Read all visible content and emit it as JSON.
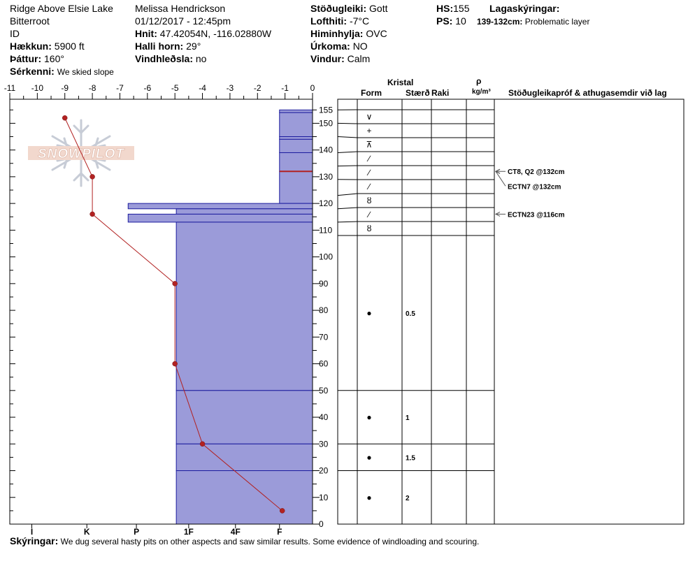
{
  "header": {
    "location": "Ridge Above Elsie Lake",
    "range": "Bitterroot",
    "state": "ID",
    "elevation_label": "Hækkun:",
    "elevation": "5900 ft",
    "aspect_label": "Þáttur:",
    "aspect": "160°",
    "notes_label": "Sérkenni:",
    "notes": "We skied slope",
    "observer": "Melissa Hendrickson",
    "datetime": "01/12/2017 - 12:45pm",
    "coords_label": "Hnit:",
    "coords": "47.42054N, -116.02880W",
    "slope_label": "Halli horn:",
    "slope": "29°",
    "wind_loading_label": "Vindhleðsla:",
    "wind_loading": "no",
    "stability_label": "Stöðugleiki:",
    "stability": "Gott",
    "air_temp_label": "Lofthiti:",
    "air_temp": "-7°C",
    "sky_label": "Himinhylja:",
    "sky": "OVC",
    "precip_label": "Úrkoma:",
    "precip": "NO",
    "wind_label": "Vindur:",
    "wind": "Calm",
    "hs_label": "HS:",
    "hs": "155",
    "ps_label": "PS:",
    "ps": "10",
    "layer_notes_label": "Lagaskýringar:",
    "layer_note_range": "139-132cm:",
    "layer_note_text": "Problematic layer"
  },
  "columns": {
    "crystal": "Kristal",
    "form": "Form",
    "size": "Stærð",
    "moisture": "Raki",
    "density_symbol": "ρ",
    "density_unit": "kg/m³",
    "stability_tests": "Stöðugleikapróf & athugasemdir við lag"
  },
  "footer": {
    "label": "Skýringar:",
    "text": "We dug several hasty pits on other aspects and saw similar results. Some evidence of windloading and scouring."
  },
  "logo_text": "SNOWPILOT",
  "colors": {
    "layer_fill": "#9b9bd9",
    "layer_line": "#1c1c9e",
    "temp": "#b22222",
    "problem_layer": "#b22222"
  },
  "chart_data": {
    "type": "snow-profile",
    "temperature_axis": {
      "min": -11,
      "max": 0,
      "ticks": [
        "-11",
        "-10",
        "-9",
        "-8",
        "-7",
        "-6",
        "-5",
        "-4",
        "-3",
        "-2",
        "-1",
        "0"
      ]
    },
    "height_axis": {
      "min": 0,
      "max": 159,
      "ticks": [
        "0",
        "10",
        "20",
        "30",
        "40",
        "50",
        "60",
        "70",
        "80",
        "90",
        "100",
        "110",
        "120",
        "130",
        "140",
        "150",
        "155"
      ]
    },
    "hardness_axis": [
      "I",
      "K",
      "P",
      "1F",
      "4F",
      "F"
    ],
    "temperature_profile": [
      {
        "h": 152,
        "t": -9
      },
      {
        "h": 130,
        "t": -8
      },
      {
        "h": 116,
        "t": -8
      },
      {
        "h": 90,
        "t": -5
      },
      {
        "h": 60,
        "t": -5
      },
      {
        "h": 30,
        "t": -4
      },
      {
        "h": 5,
        "t": -1.1
      }
    ],
    "layers": [
      {
        "top": 155,
        "bottom": 154,
        "hardness": -1.2
      },
      {
        "top": 154,
        "bottom": 145,
        "hardness": -1.2
      },
      {
        "top": 145,
        "bottom": 144,
        "hardness": -1.2
      },
      {
        "top": 144,
        "bottom": 139,
        "hardness": -1.2
      },
      {
        "top": 139,
        "bottom": 132,
        "hardness": -1.2
      },
      {
        "top": 132,
        "bottom": 120,
        "hardness": -1.2
      },
      {
        "top": 120,
        "bottom": 118,
        "hardness": -6.7
      },
      {
        "top": 118,
        "bottom": 116,
        "hardness": -4.95
      },
      {
        "top": 116,
        "bottom": 113,
        "hardness": -6.7
      },
      {
        "top": 113,
        "bottom": 50,
        "hardness": -4.95
      },
      {
        "top": 50,
        "bottom": 30,
        "hardness": -4.95
      },
      {
        "top": 30,
        "bottom": 20,
        "hardness": -4.95
      },
      {
        "top": 20,
        "bottom": 0,
        "hardness": -4.95
      }
    ],
    "problem_layer_height": 132,
    "grain_rows": [
      {
        "top": 155,
        "bottom": 150,
        "form": "∨",
        "size": ""
      },
      {
        "top": 150,
        "bottom": 145,
        "form": "+",
        "size": ""
      },
      {
        "top": 145,
        "bottom": 139,
        "form": "⊼",
        "size": ""
      },
      {
        "top": 139,
        "bottom": 134,
        "form": "∕",
        "size": ""
      },
      {
        "top": 134,
        "bottom": 129,
        "form": "∕",
        "size": ""
      },
      {
        "top": 129,
        "bottom": 123,
        "form": "∕",
        "size": ""
      },
      {
        "top": 123,
        "bottom": 118,
        "form": "ȣ",
        "size": ""
      },
      {
        "top": 118,
        "bottom": 113,
        "form": "∕",
        "size": ""
      },
      {
        "top": 113,
        "bottom": 108,
        "form": "ȣ",
        "size": ""
      },
      {
        "top": 108,
        "bottom": 50,
        "form": "●",
        "size": "0.5"
      },
      {
        "top": 50,
        "bottom": 30,
        "form": "●",
        "size": "1"
      },
      {
        "top": 30,
        "bottom": 20,
        "form": "●",
        "size": "1.5"
      },
      {
        "top": 20,
        "bottom": 0,
        "form": "●",
        "size": "2"
      }
    ],
    "stability_tests": [
      {
        "label": "CT8, Q2 @132cm",
        "height": 132,
        "text_row": 132
      },
      {
        "label": "ECTN7 @132cm",
        "height": 132,
        "text_row": 126.5
      },
      {
        "label": "ECTN23 @116cm",
        "height": 116,
        "text_row": 116
      }
    ]
  }
}
